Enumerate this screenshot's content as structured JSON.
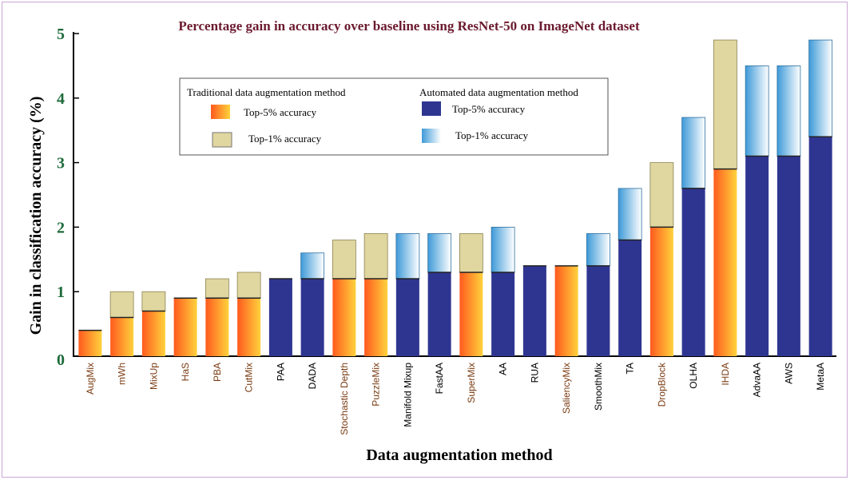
{
  "chart_data": {
    "type": "bar",
    "title": "Percentage gain in accuracy over baseline using ResNet-50 on ImageNet  dataset",
    "xlabel": "Data augmentation method",
    "ylabel": "Gain in classification accuracy (%)",
    "ylim": [
      0,
      5
    ],
    "yticks": [
      "0",
      "1",
      "2",
      "3",
      "4",
      "5"
    ],
    "stacked": true,
    "categories": [
      "AugMix",
      "mWh",
      "MixUp",
      "HaS",
      "PBA",
      "CutMix",
      "PAA",
      "DADA",
      "Stochastic Depth",
      "PuzzleMix",
      "Manifold Mixup",
      "FastAA",
      "SuperMix",
      "AA",
      "RUA",
      "SaliencyMix",
      "SmoothMix",
      "TA",
      "DropBlock",
      "OLHA",
      "IHDA",
      "AdvaAA",
      "AWS",
      "MetaA"
    ],
    "method_type": [
      "traditional",
      "traditional",
      "traditional",
      "traditional",
      "traditional",
      "traditional",
      "automated",
      "automated",
      "traditional",
      "traditional",
      "automated",
      "automated",
      "traditional",
      "automated",
      "automated",
      "traditional",
      "automated",
      "automated",
      "traditional",
      "automated",
      "traditional",
      "automated",
      "automated",
      "automated"
    ],
    "series": [
      {
        "name": "Top-5% accuracy",
        "values": [
          0.4,
          0.6,
          0.7,
          0.9,
          0.9,
          0.9,
          1.2,
          1.2,
          1.2,
          1.2,
          1.2,
          1.3,
          1.3,
          1.3,
          1.4,
          1.4,
          1.4,
          1.8,
          2.0,
          2.6,
          2.9,
          3.1,
          3.1,
          3.4
        ]
      },
      {
        "name": "Top-1% accuracy",
        "values": [
          0.0,
          0.4,
          0.3,
          0.0,
          0.3,
          0.4,
          0.0,
          0.4,
          0.6,
          0.7,
          0.7,
          0.6,
          0.6,
          0.7,
          0.0,
          0.0,
          0.5,
          0.8,
          1.0,
          1.1,
          2.0,
          1.4,
          1.4,
          1.5
        ]
      }
    ],
    "legend": {
      "placement": "upper-left",
      "traditional_heading": "Traditional data augmentation method",
      "automated_heading": "Automated data augmentation method",
      "traditional_top5": "Top-5% accuracy",
      "traditional_top1": "Top-1% accuracy",
      "automated_top5": "Top-5% accuracy",
      "automated_top1": "Top-1% accuracy"
    },
    "grid": false,
    "colors": {
      "traditional_top5_start": "#ff5a1e",
      "traditional_top5_end": "#ffd23c",
      "traditional_top1": "#e0d6a0",
      "automated_top5": "#2e3590",
      "automated_top1_start": "#3e9ad8",
      "automated_top1_end": "#ffffff",
      "traditional_label": "#7a3b12",
      "automated_label": "#000000",
      "title": "#6b1a2e",
      "ytick": "#1e6b3a"
    }
  }
}
